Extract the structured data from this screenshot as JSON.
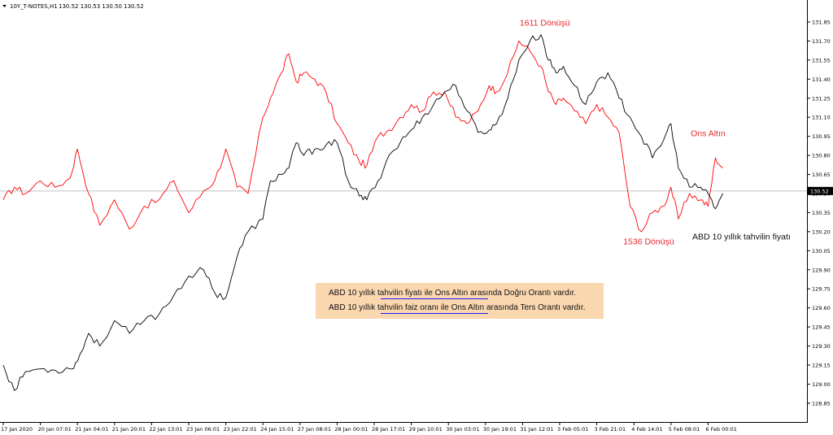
{
  "header": {
    "symbol": "10Y_T-NOTES,H1",
    "ohlc": "130.52 130.53 130.50 130.52"
  },
  "current_price": "130.52",
  "notes": {
    "line1": "ABD 10 yıllık tahvilin fiyatı ile Ons Altın arasında Doğru  Orantı vardır.",
    "line2": "ABD 10 yıllık tahvilin faiz oranı ile Ons Altın arasında Ters  Orantı vardır."
  },
  "colors": {
    "gold_series": "#ff0000",
    "bond_series": "#000000",
    "note_background": "#fbd7b0",
    "underline": "#1a1aff"
  },
  "chart_data": {
    "type": "line",
    "title": "10Y_T-NOTES,H1",
    "xlabel": "",
    "ylabel": "",
    "ylim": [
      128.8,
      131.95
    ],
    "grid": false,
    "y_ticks": [
      "131.85",
      "131.70",
      "131.55",
      "131.40",
      "131.25",
      "131.10",
      "130.95",
      "130.80",
      "130.65",
      "130.50",
      "130.35",
      "130.20",
      "130.05",
      "129.90",
      "129.75",
      "129.60",
      "129.45",
      "129.30",
      "129.15",
      "129.00",
      "128.85"
    ],
    "x_ticks": [
      "17 Jan 2020",
      "20 Jan 07:01",
      "21 Jan 04:01",
      "21 Jan 20:01",
      "22 Jan 13:01",
      "23 Jan 06:01",
      "23 Jan 22:01",
      "24 Jan 15:01",
      "27 Jan 08:01",
      "28 Jan 00:01",
      "28 Jan 17:01",
      "29 Jan 10:01",
      "30 Jan 03:01",
      "30 Jan 19:01",
      "31 Jan 12:01",
      "3 Feb 05:01",
      "3 Feb 21:01",
      "4 Feb 14:01",
      "5 Feb 08:01",
      "6 Feb 00:01"
    ],
    "horizontal_line": 130.52,
    "annotations": [
      {
        "text": "1611 Dönüşü",
        "series": "gold",
        "x": 14.6,
        "y": 131.82
      },
      {
        "text": "Ons Altın",
        "series": "gold",
        "x": 19.0,
        "y": 130.95
      },
      {
        "text": "1536 Dönüşü",
        "series": "gold",
        "x": 17.4,
        "y": 130.1
      },
      {
        "text": "ABD 10 yıllık tahvilin fiyatı",
        "series": "bond",
        "x": 19.9,
        "y": 130.14
      }
    ],
    "series": [
      {
        "id": "bond",
        "x": [
          0,
          0.3,
          0.6,
          1.0,
          1.4,
          1.8,
          2.0,
          2.3,
          2.6,
          3.0,
          3.4,
          3.8,
          4.2,
          4.6,
          5.0,
          5.4,
          5.7,
          6.0,
          6.3,
          6.6,
          7.0,
          7.2,
          7.5,
          7.7,
          7.9,
          8.1,
          8.4,
          8.7,
          9.0,
          9.3,
          9.6,
          9.8,
          10.1,
          10.4,
          10.7,
          11.0,
          11.3,
          11.6,
          11.9,
          12.2,
          12.5,
          12.8,
          13.1,
          13.3,
          13.6,
          13.9,
          14.2,
          14.5,
          14.7,
          14.9,
          15.1,
          15.4,
          15.7,
          16.0,
          16.3,
          16.6,
          16.9,
          17.2,
          17.5,
          17.8,
          18.0,
          18.2,
          18.5,
          18.8,
          19.0,
          19.2,
          19.4
        ],
        "values": [
          129.15,
          128.95,
          129.1,
          129.12,
          129.11,
          129.12,
          129.18,
          129.4,
          129.3,
          129.5,
          129.4,
          129.5,
          129.55,
          129.7,
          129.85,
          129.9,
          129.72,
          129.68,
          130.0,
          130.2,
          130.3,
          130.6,
          130.65,
          130.7,
          130.9,
          130.8,
          130.85,
          130.88,
          130.9,
          130.6,
          130.48,
          130.45,
          130.6,
          130.8,
          130.9,
          131.0,
          131.1,
          131.2,
          131.3,
          131.35,
          131.15,
          130.98,
          131.0,
          131.05,
          131.25,
          131.55,
          131.7,
          131.75,
          131.55,
          131.45,
          131.5,
          131.35,
          131.2,
          131.38,
          131.45,
          131.25,
          131.1,
          130.95,
          130.78,
          130.92,
          131.05,
          130.7,
          130.55,
          130.55,
          130.5,
          130.38,
          130.5
        ]
      },
      {
        "id": "gold",
        "x": [
          0,
          0.3,
          0.6,
          1.0,
          1.4,
          1.8,
          2.0,
          2.3,
          2.6,
          3.0,
          3.4,
          3.8,
          4.2,
          4.6,
          5.0,
          5.4,
          5.7,
          6.0,
          6.3,
          6.6,
          7.0,
          7.2,
          7.5,
          7.7,
          7.9,
          8.1,
          8.4,
          8.7,
          9.0,
          9.3,
          9.6,
          9.8,
          10.1,
          10.4,
          10.7,
          11.0,
          11.3,
          11.6,
          11.9,
          12.2,
          12.5,
          12.8,
          13.1,
          13.3,
          13.6,
          13.9,
          14.2,
          14.5,
          14.7,
          14.9,
          15.1,
          15.4,
          15.7,
          16.0,
          16.3,
          16.6,
          16.9,
          17.2,
          17.5,
          17.8,
          18.0,
          18.2,
          18.5,
          18.8,
          19.0,
          19.2,
          19.4
        ],
        "values": [
          130.45,
          130.55,
          130.5,
          130.6,
          130.55,
          130.62,
          130.85,
          130.5,
          130.25,
          130.45,
          130.22,
          130.4,
          130.45,
          130.6,
          130.35,
          130.52,
          130.6,
          130.85,
          130.55,
          130.5,
          131.1,
          131.25,
          131.45,
          131.6,
          131.38,
          131.45,
          131.4,
          131.3,
          131.05,
          130.9,
          130.75,
          130.72,
          130.95,
          131.0,
          131.1,
          131.2,
          131.15,
          131.3,
          131.3,
          131.1,
          131.05,
          131.15,
          131.35,
          131.3,
          131.45,
          131.7,
          131.62,
          131.5,
          131.3,
          131.2,
          131.25,
          131.15,
          131.05,
          131.2,
          131.1,
          130.98,
          130.4,
          130.2,
          130.35,
          130.4,
          130.55,
          130.3,
          130.5,
          130.45,
          130.4,
          130.78,
          130.7
        ]
      }
    ]
  }
}
